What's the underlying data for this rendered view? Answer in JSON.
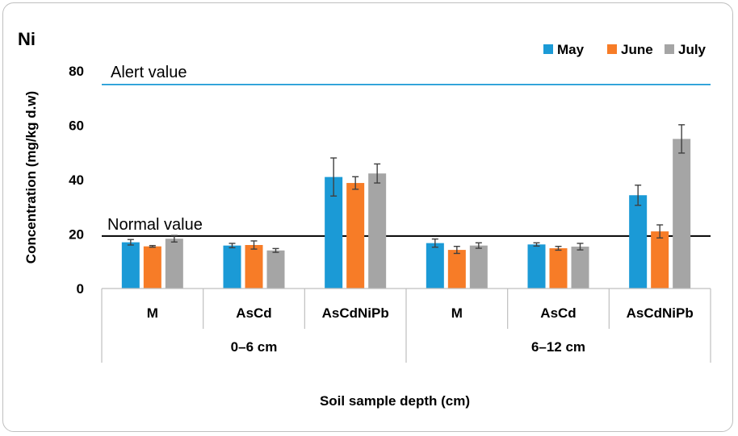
{
  "chart_data": {
    "type": "bar",
    "title": "Ni",
    "xlabel": "Soil sample depth (cm)",
    "ylabel": "Concentration (mg/kg d.w)",
    "ylim": [
      0,
      80
    ],
    "yticks": [
      "0",
      "20",
      "40",
      "60",
      "80"
    ],
    "grid": false,
    "legend_position": "top-right",
    "groups": [
      {
        "label": "0–6 cm",
        "categories": [
          "M",
          "AsCd",
          "AsCdNiPb"
        ]
      },
      {
        "label": "6–12 cm",
        "categories": [
          "M",
          "AsCd",
          "AsCdNiPb"
        ]
      }
    ],
    "categories": [
      "M",
      "AsCd",
      "AsCdNiPb",
      "M",
      "AsCd",
      "AsCdNiPb"
    ],
    "series": [
      {
        "name": "May",
        "color": "#1b9ad6",
        "values": [
          17,
          15.8,
          41,
          16.7,
          16.2,
          34.3
        ],
        "errors": [
          1,
          0.8,
          7,
          1.5,
          0.6,
          3.7
        ]
      },
      {
        "name": "June",
        "color": "#f77c27",
        "values": [
          15.5,
          16,
          38.8,
          14.2,
          14.8,
          21
        ],
        "errors": [
          0.3,
          1.5,
          2.3,
          1.3,
          0.7,
          2.4
        ]
      },
      {
        "name": "July",
        "color": "#a5a5a5",
        "values": [
          18.3,
          14,
          42.3,
          15.8,
          15.4,
          55
        ],
        "errors": [
          1.2,
          0.7,
          3.5,
          1,
          1.2,
          5.2
        ]
      }
    ],
    "reference_lines": [
      {
        "label": "Alert value",
        "value": 75,
        "color": "#1b9ad6"
      },
      {
        "label": "Normal value",
        "value": 19.3,
        "color": "#000000"
      }
    ]
  }
}
